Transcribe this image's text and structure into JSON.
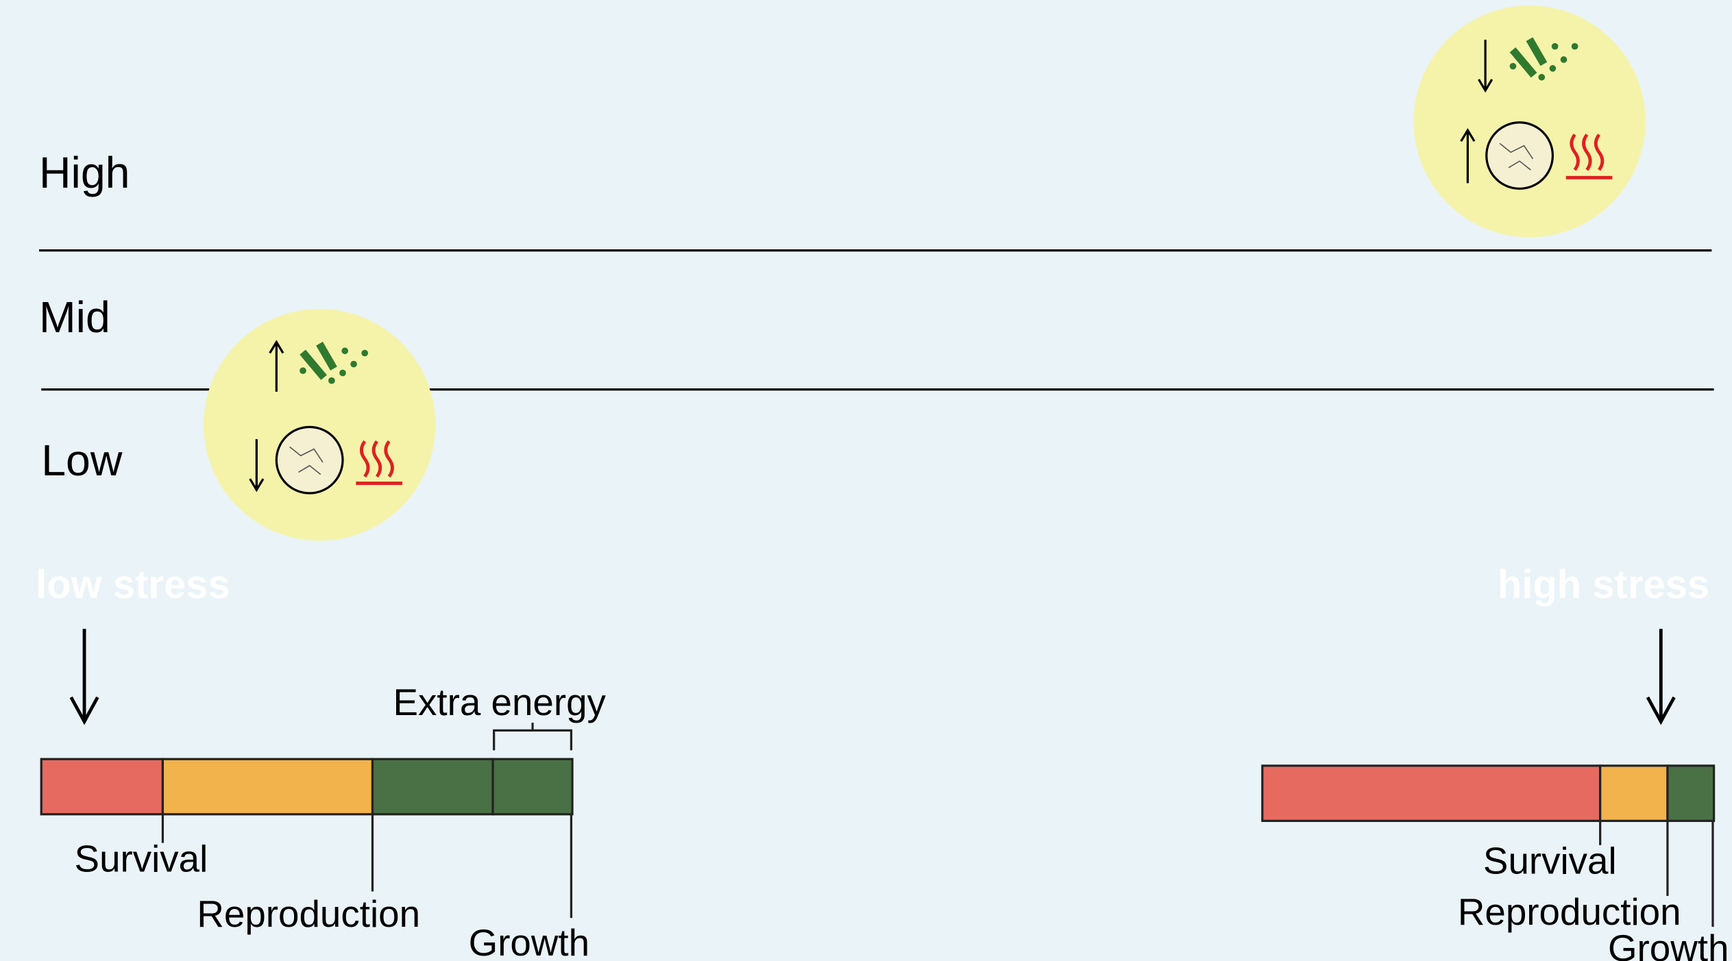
{
  "levels": [
    "High",
    "Mid",
    "Low"
  ],
  "stress_labels": {
    "low": "low stress",
    "high": "high stress"
  },
  "left_bar": {
    "annotation": "Extra energy",
    "labels": [
      "Survival",
      "Reproduction",
      "Growth"
    ]
  },
  "right_bar": {
    "labels": [
      "Survival",
      "Reproduction",
      "Growth"
    ]
  }
}
